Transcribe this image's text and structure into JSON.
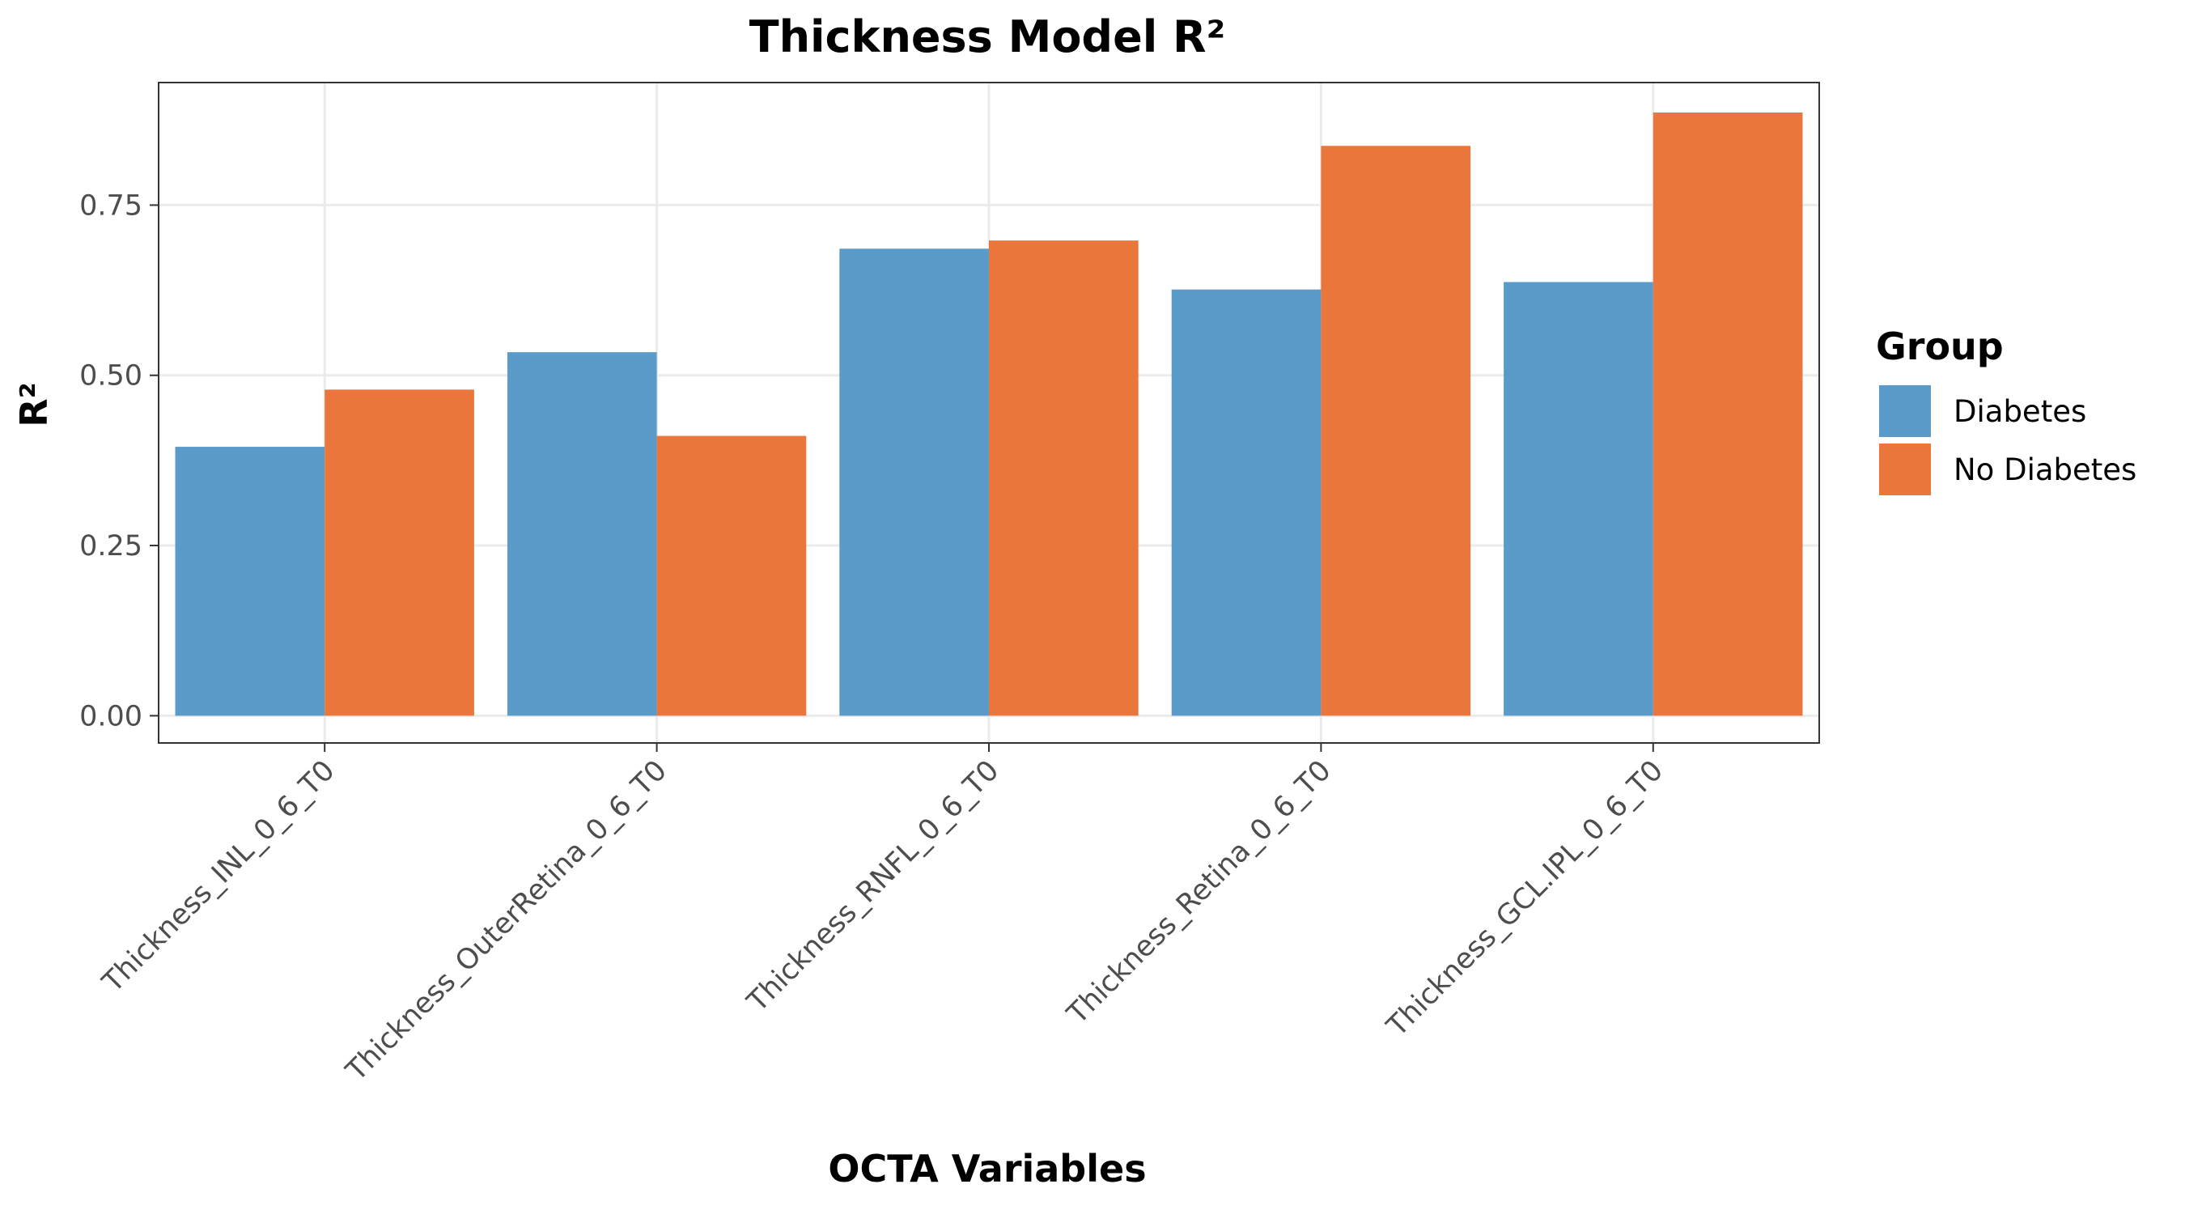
{
  "chart_data": {
    "type": "bar",
    "title": "Thickness Model R²",
    "xlabel": "OCTA Variables",
    "ylabel": "R²",
    "categories": [
      "Thickness_INL_0_6_T0",
      "Thickness_OuterRetina_0_6_T0",
      "Thickness_RNFL_0_6_T0",
      "Thickness_Retina_0_6_T0",
      "Thickness_GCL.IPL_0_6_T0"
    ],
    "series": [
      {
        "name": "Diabetes",
        "color": "#5a9bc9",
        "values": [
          0.395,
          0.534,
          0.686,
          0.626,
          0.637
        ]
      },
      {
        "name": "No Diabetes",
        "color": "#eb763b",
        "values": [
          0.479,
          0.411,
          0.698,
          0.837,
          0.886
        ]
      }
    ],
    "ylim": [
      -0.04,
      0.93
    ],
    "yticks": [
      0.0,
      0.25,
      0.5,
      0.75
    ],
    "ytick_labels": [
      "0.00",
      "0.25",
      "0.50",
      "0.75"
    ],
    "grid": true,
    "legend": {
      "title": "Group",
      "position": "right"
    }
  }
}
